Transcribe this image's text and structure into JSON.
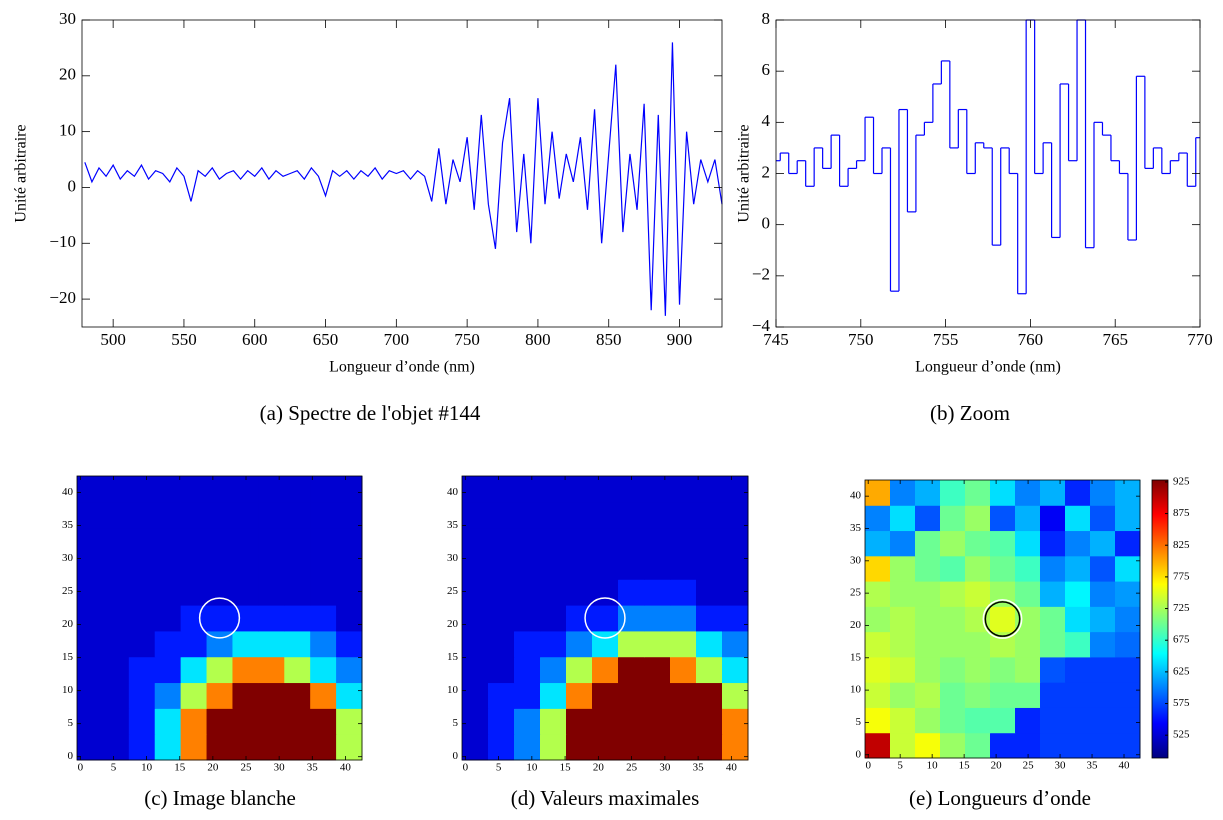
{
  "chart_data": [
    {
      "type": "line",
      "caption": "(a) Spectre de l'objet #144",
      "xlabel": "Longueur d’onde (nm)",
      "ylabel": "Unité arbitraire",
      "x": [
        480,
        485,
        490,
        495,
        500,
        505,
        510,
        515,
        520,
        525,
        530,
        535,
        540,
        545,
        550,
        555,
        560,
        565,
        570,
        575,
        580,
        585,
        590,
        595,
        600,
        605,
        610,
        615,
        620,
        625,
        630,
        635,
        640,
        645,
        650,
        655,
        660,
        665,
        670,
        675,
        680,
        685,
        690,
        695,
        700,
        705,
        710,
        715,
        720,
        725,
        730,
        735,
        740,
        745,
        750,
        755,
        760,
        765,
        770,
        775,
        780,
        785,
        790,
        795,
        800,
        805,
        810,
        815,
        820,
        825,
        830,
        835,
        840,
        845,
        850,
        855,
        860,
        865,
        870,
        875,
        880,
        885,
        890,
        895,
        900,
        905,
        910,
        915,
        920,
        925,
        930
      ],
      "series": [
        {
          "color": "#0000ff",
          "values": [
            4.5,
            1,
            3.5,
            2,
            4,
            1.5,
            3,
            2,
            4,
            1.5,
            3,
            2.5,
            1,
            3.5,
            2,
            -2.5,
            3,
            2,
            3.5,
            1.5,
            2.5,
            3,
            1.5,
            3,
            2,
            3.5,
            1.5,
            3,
            2,
            2.5,
            3,
            1.5,
            3.5,
            2,
            -1.5,
            3,
            2,
            3,
            1.5,
            3,
            2,
            3.5,
            1.5,
            3,
            2.5,
            3,
            1.5,
            3,
            2,
            -2.5,
            7,
            -3,
            5,
            1,
            9,
            -4,
            13,
            -3,
            -11,
            8,
            16,
            -8,
            6,
            -10,
            16,
            -3,
            10,
            -2,
            6,
            1,
            9,
            -4,
            14,
            -10,
            6,
            22,
            -8,
            6,
            -4,
            15,
            -22,
            13,
            -23,
            26,
            -21,
            10,
            -3,
            5,
            1,
            5,
            -3
          ]
        }
      ],
      "xlim": [
        478,
        930
      ],
      "ylim": [
        -25,
        30
      ],
      "xticks": [
        500,
        550,
        600,
        650,
        700,
        750,
        800,
        850,
        900
      ],
      "yticks": [
        {
          "value": -20,
          "label": "−20"
        },
        {
          "value": -10,
          "label": "−10"
        },
        0,
        10,
        20,
        30
      ]
    },
    {
      "type": "line",
      "step": true,
      "caption": "(b) Zoom",
      "xlabel": "Longueur d’onde (nm)",
      "ylabel": "Unité arbitraire",
      "x": [
        745,
        745.5,
        746,
        746.5,
        747,
        747.5,
        748,
        748.5,
        749,
        749.5,
        750,
        750.5,
        751,
        751.5,
        752,
        752.5,
        753,
        753.5,
        754,
        754.5,
        755,
        755.5,
        756,
        756.5,
        757,
        757.5,
        758,
        758.5,
        759,
        759.5,
        760,
        760.5,
        761,
        761.5,
        762,
        762.5,
        763,
        763.5,
        764,
        764.5,
        765,
        765.5,
        766,
        766.5,
        767,
        767.5,
        768,
        768.5,
        769,
        769.5,
        770
      ],
      "series": [
        {
          "color": "#0000ff",
          "values": [
            2.5,
            2.8,
            2,
            2.5,
            1.5,
            3,
            2.2,
            3.5,
            1.5,
            2.2,
            2.5,
            4.2,
            2,
            3,
            -2.6,
            4.5,
            0.5,
            3.5,
            4,
            5.5,
            6.4,
            3,
            4.5,
            2,
            3.2,
            3,
            -0.8,
            3,
            2,
            -2.7,
            8,
            2,
            3.2,
            -0.5,
            5.5,
            2.5,
            8,
            -0.9,
            4,
            3.5,
            2.5,
            2,
            -0.6,
            5.8,
            2.2,
            3,
            2,
            2.5,
            2.8,
            1.5,
            3.4
          ]
        }
      ],
      "xlim": [
        745,
        770
      ],
      "ylim": [
        -4,
        8
      ],
      "xticks": [
        745,
        750,
        755,
        760,
        765,
        770
      ],
      "yticks": [
        {
          "value": -4,
          "label": "−4"
        },
        {
          "value": -2,
          "label": "−2"
        },
        0,
        2,
        4,
        6,
        8
      ]
    },
    {
      "type": "heatmap",
      "caption": "(c) Image blanche",
      "colormap": "jet",
      "clim": [
        0,
        1
      ],
      "xlim": [
        -0.5,
        42.5
      ],
      "ylim": [
        -0.5,
        42.5
      ],
      "xticks": [
        0,
        5,
        10,
        15,
        20,
        25,
        30,
        35,
        40
      ],
      "yticks": [
        0,
        5,
        10,
        15,
        20,
        25,
        30,
        35,
        40
      ],
      "values": [
        [
          0.08,
          0.08,
          0.15,
          0.35,
          0.75,
          1,
          1,
          1,
          1,
          1,
          0.55
        ],
        [
          0.08,
          0.08,
          0.15,
          0.35,
          0.75,
          1,
          1,
          1,
          1,
          1,
          0.55
        ],
        [
          0.08,
          0.08,
          0.15,
          0.25,
          0.55,
          0.75,
          1,
          1,
          1,
          0.75,
          0.35
        ],
        [
          0.08,
          0.08,
          0.15,
          0.15,
          0.35,
          0.55,
          0.75,
          0.75,
          0.55,
          0.35,
          0.25
        ],
        [
          0.08,
          0.08,
          0.08,
          0.15,
          0.15,
          0.25,
          0.35,
          0.35,
          0.35,
          0.25,
          0.15
        ],
        [
          0.08,
          0.08,
          0.08,
          0.08,
          0.15,
          0.15,
          0.15,
          0.15,
          0.15,
          0.15,
          0.08
        ],
        [
          0.08,
          0.08,
          0.08,
          0.08,
          0.08,
          0.08,
          0.08,
          0.08,
          0.08,
          0.08,
          0.08
        ],
        [
          0.08,
          0.08,
          0.08,
          0.08,
          0.08,
          0.08,
          0.08,
          0.08,
          0.08,
          0.08,
          0.08
        ],
        [
          0.08,
          0.08,
          0.08,
          0.08,
          0.08,
          0.08,
          0.08,
          0.08,
          0.08,
          0.08,
          0.08
        ],
        [
          0.08,
          0.08,
          0.08,
          0.08,
          0.08,
          0.08,
          0.08,
          0.08,
          0.08,
          0.08,
          0.08
        ],
        [
          0.08,
          0.08,
          0.08,
          0.08,
          0.08,
          0.08,
          0.08,
          0.08,
          0.08,
          0.08,
          0.08
        ]
      ],
      "circle": {
        "x": 21,
        "y": 21,
        "r": 3,
        "colors": [
          "#ffffff"
        ]
      }
    },
    {
      "type": "heatmap",
      "caption": "(d) Valeurs maximales",
      "colormap": "jet",
      "clim": [
        0,
        1
      ],
      "xlim": [
        -0.5,
        42.5
      ],
      "ylim": [
        -0.5,
        42.5
      ],
      "xticks": [
        0,
        5,
        10,
        15,
        20,
        25,
        30,
        35,
        40
      ],
      "yticks": [
        0,
        5,
        10,
        15,
        20,
        25,
        30,
        35,
        40
      ],
      "values": [
        [
          0.08,
          0.15,
          0.25,
          0.55,
          1,
          1,
          1,
          1,
          1,
          1,
          0.75
        ],
        [
          0.08,
          0.15,
          0.25,
          0.55,
          1,
          1,
          1,
          1,
          1,
          1,
          0.75
        ],
        [
          0.08,
          0.15,
          0.15,
          0.35,
          0.75,
          1,
          1,
          1,
          1,
          1,
          0.55
        ],
        [
          0.08,
          0.08,
          0.15,
          0.25,
          0.55,
          0.75,
          1,
          1,
          0.75,
          0.55,
          0.35
        ],
        [
          0.08,
          0.08,
          0.15,
          0.15,
          0.25,
          0.35,
          0.55,
          0.55,
          0.55,
          0.35,
          0.25
        ],
        [
          0.08,
          0.08,
          0.08,
          0.08,
          0.15,
          0.15,
          0.25,
          0.25,
          0.25,
          0.15,
          0.15
        ],
        [
          0.08,
          0.08,
          0.08,
          0.08,
          0.08,
          0.08,
          0.15,
          0.15,
          0.15,
          0.08,
          0.08
        ],
        [
          0.08,
          0.08,
          0.08,
          0.08,
          0.08,
          0.08,
          0.08,
          0.08,
          0.08,
          0.08,
          0.08
        ],
        [
          0.08,
          0.08,
          0.08,
          0.08,
          0.08,
          0.08,
          0.08,
          0.08,
          0.08,
          0.08,
          0.08
        ],
        [
          0.08,
          0.08,
          0.08,
          0.08,
          0.08,
          0.08,
          0.08,
          0.08,
          0.08,
          0.08,
          0.08
        ],
        [
          0.08,
          0.08,
          0.08,
          0.08,
          0.08,
          0.08,
          0.08,
          0.08,
          0.08,
          0.08,
          0.08
        ]
      ],
      "circle": {
        "x": 21,
        "y": 21,
        "r": 3,
        "colors": [
          "#ffffff"
        ]
      }
    },
    {
      "type": "heatmap",
      "caption": "(e) Longueurs d’onde",
      "colormap": "jet",
      "clim": [
        489,
        928
      ],
      "xlim": [
        -0.5,
        42.5
      ],
      "ylim": [
        -0.5,
        42.5
      ],
      "xticks": [
        0,
        5,
        10,
        15,
        20,
        25,
        30,
        35,
        40
      ],
      "yticks": [
        0,
        5,
        10,
        15,
        20,
        25,
        30,
        35,
        40
      ],
      "colorbar_ticks": [
        525,
        575,
        625,
        675,
        725,
        775,
        825,
        875,
        925
      ],
      "values": [
        [
          900,
          740,
          760,
          720,
          700,
          560,
          560,
          570,
          570,
          570,
          570
        ],
        [
          760,
          740,
          720,
          700,
          690,
          690,
          560,
          570,
          570,
          570,
          570
        ],
        [
          740,
          720,
          730,
          700,
          710,
          700,
          700,
          570,
          570,
          570,
          570
        ],
        [
          750,
          740,
          720,
          710,
          720,
          710,
          720,
          580,
          570,
          570,
          570
        ],
        [
          740,
          730,
          720,
          720,
          720,
          730,
          720,
          700,
          680,
          600,
          590
        ],
        [
          720,
          730,
          720,
          720,
          730,
          750,
          720,
          700,
          640,
          620,
          600
        ],
        [
          730,
          720,
          720,
          730,
          740,
          720,
          700,
          620,
          650,
          600,
          610
        ],
        [
          780,
          720,
          700,
          690,
          720,
          700,
          680,
          600,
          620,
          580,
          640
        ],
        [
          620,
          600,
          700,
          720,
          700,
          690,
          640,
          560,
          600,
          620,
          560
        ],
        [
          600,
          640,
          580,
          700,
          720,
          580,
          620,
          540,
          640,
          580,
          620
        ],
        [
          800,
          600,
          620,
          680,
          700,
          640,
          600,
          620,
          560,
          600,
          620
        ]
      ],
      "circle": {
        "x": 21,
        "y": 21,
        "r": 3,
        "colors": [
          "#ffffff",
          "#000000"
        ]
      }
    }
  ]
}
